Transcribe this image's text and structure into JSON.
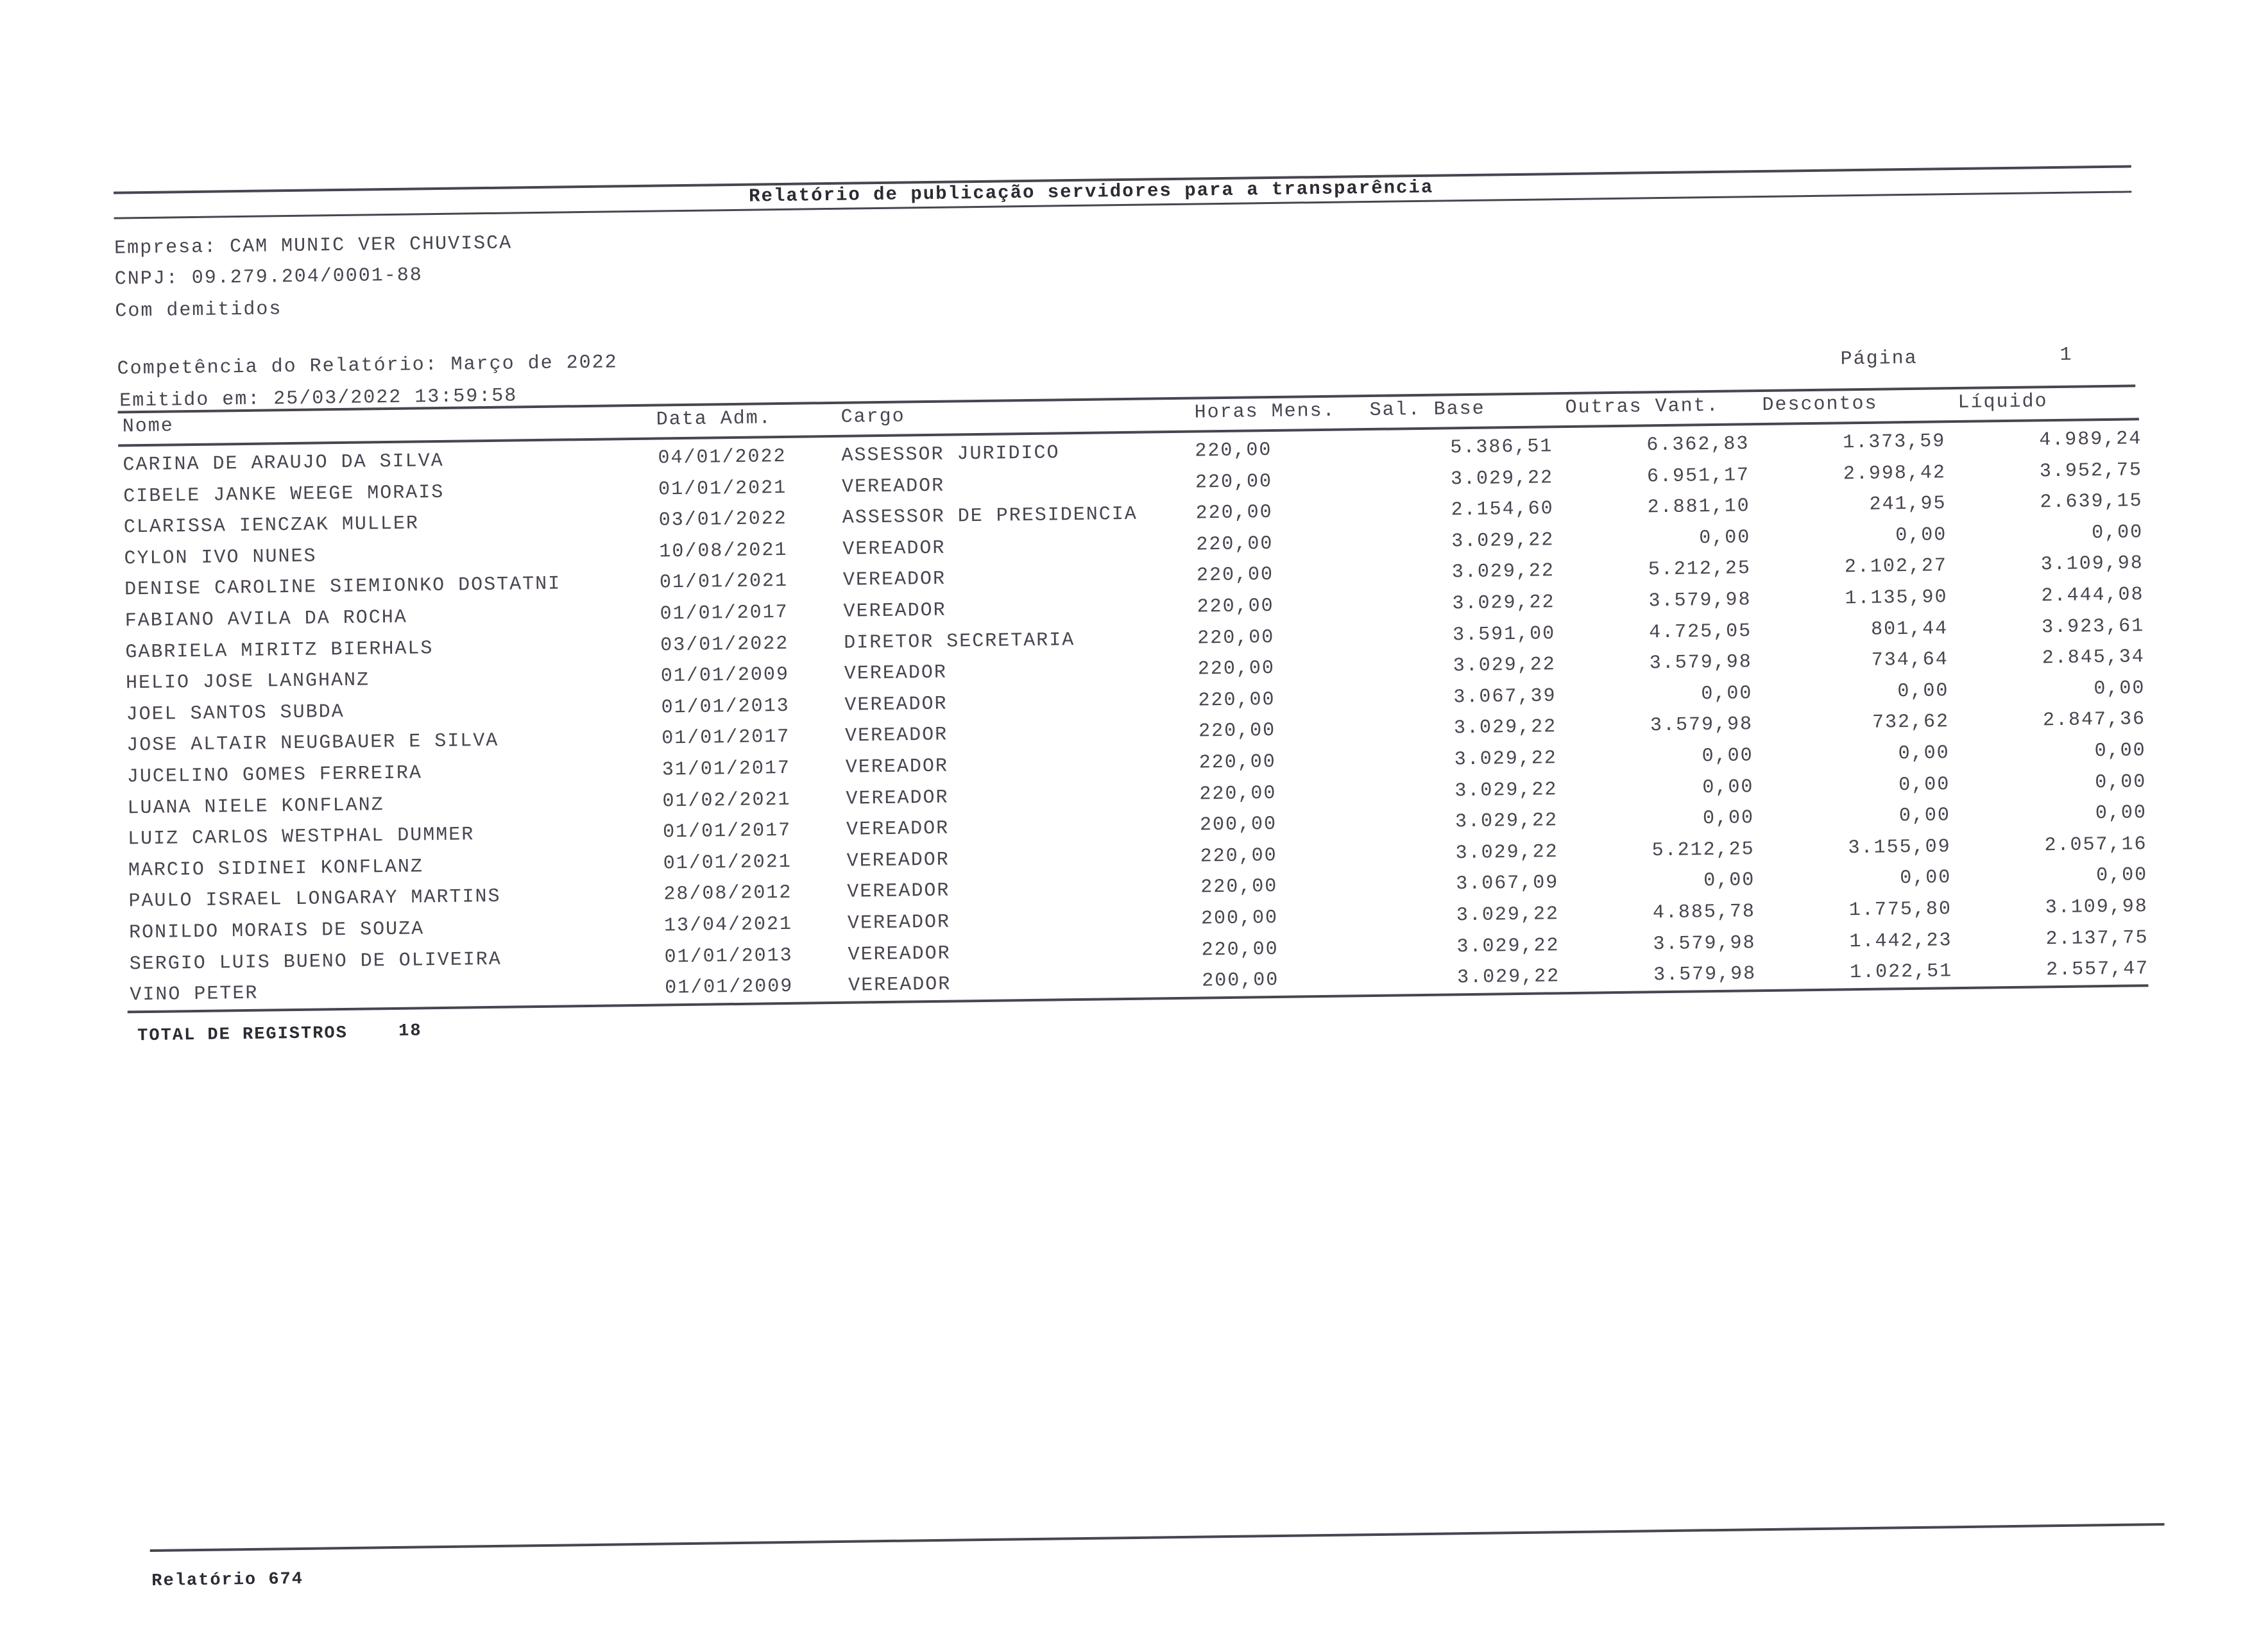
{
  "report_title": "Relatório de publicação servidores para a transparência",
  "company_line": "Empresa: CAM MUNIC VER CHUVISCA",
  "cnpj_line": "CNPJ: 09.279.204/0001-88",
  "filter_line": "Com demitidos",
  "competence_line": "Competência do Relatório: Março de 2022",
  "issued_line": "Emitido em: 25/03/2022 13:59:58",
  "page_label": "Página",
  "page_number": "1",
  "columns": [
    "Nome",
    "Data Adm.",
    "Cargo",
    "Horas Mens.",
    "Sal. Base",
    "Outras Vant.",
    "Descontos",
    "Líquido"
  ],
  "rows": [
    [
      "CARINA DE ARAUJO DA SILVA",
      "04/01/2022",
      "ASSESSOR JURIDICO",
      "220,00",
      "5.386,51",
      "6.362,83",
      "1.373,59",
      "4.989,24"
    ],
    [
      "CIBELE JANKE WEEGE MORAIS",
      "01/01/2021",
      "VEREADOR",
      "220,00",
      "3.029,22",
      "6.951,17",
      "2.998,42",
      "3.952,75"
    ],
    [
      "CLARISSA IENCZAK MULLER",
      "03/01/2022",
      "ASSESSOR DE PRESIDENCIA",
      "220,00",
      "2.154,60",
      "2.881,10",
      "241,95",
      "2.639,15"
    ],
    [
      "CYLON IVO NUNES",
      "10/08/2021",
      "VEREADOR",
      "220,00",
      "3.029,22",
      "0,00",
      "0,00",
      "0,00"
    ],
    [
      "DENISE CAROLINE SIEMIONKO DOSTATNI",
      "01/01/2021",
      "VEREADOR",
      "220,00",
      "3.029,22",
      "5.212,25",
      "2.102,27",
      "3.109,98"
    ],
    [
      "FABIANO AVILA DA ROCHA",
      "01/01/2017",
      "VEREADOR",
      "220,00",
      "3.029,22",
      "3.579,98",
      "1.135,90",
      "2.444,08"
    ],
    [
      "GABRIELA MIRITZ BIERHALS",
      "03/01/2022",
      "DIRETOR SECRETARIA",
      "220,00",
      "3.591,00",
      "4.725,05",
      "801,44",
      "3.923,61"
    ],
    [
      "HELIO JOSE LANGHANZ",
      "01/01/2009",
      "VEREADOR",
      "220,00",
      "3.029,22",
      "3.579,98",
      "734,64",
      "2.845,34"
    ],
    [
      "JOEL SANTOS SUBDA",
      "01/01/2013",
      "VEREADOR",
      "220,00",
      "3.067,39",
      "0,00",
      "0,00",
      "0,00"
    ],
    [
      "JOSE ALTAIR NEUGBAUER E SILVA",
      "01/01/2017",
      "VEREADOR",
      "220,00",
      "3.029,22",
      "3.579,98",
      "732,62",
      "2.847,36"
    ],
    [
      "JUCELINO GOMES FERREIRA",
      "31/01/2017",
      "VEREADOR",
      "220,00",
      "3.029,22",
      "0,00",
      "0,00",
      "0,00"
    ],
    [
      "LUANA NIELE KONFLANZ",
      "01/02/2021",
      "VEREADOR",
      "220,00",
      "3.029,22",
      "0,00",
      "0,00",
      "0,00"
    ],
    [
      "LUIZ CARLOS WESTPHAL DUMMER",
      "01/01/2017",
      "VEREADOR",
      "200,00",
      "3.029,22",
      "0,00",
      "0,00",
      "0,00"
    ],
    [
      "MARCIO SIDINEI KONFLANZ",
      "01/01/2021",
      "VEREADOR",
      "220,00",
      "3.029,22",
      "5.212,25",
      "3.155,09",
      "2.057,16"
    ],
    [
      "PAULO ISRAEL LONGARAY MARTINS",
      "28/08/2012",
      "VEREADOR",
      "220,00",
      "3.067,09",
      "0,00",
      "0,00",
      "0,00"
    ],
    [
      "RONILDO MORAIS DE SOUZA",
      "13/04/2021",
      "VEREADOR",
      "200,00",
      "3.029,22",
      "4.885,78",
      "1.775,80",
      "3.109,98"
    ],
    [
      "SERGIO LUIS BUENO DE OLIVEIRA",
      "01/01/2013",
      "VEREADOR",
      "220,00",
      "3.029,22",
      "3.579,98",
      "1.442,23",
      "2.137,75"
    ],
    [
      "VINO PETER",
      "01/01/2009",
      "VEREADOR",
      "200,00",
      "3.029,22",
      "3.579,98",
      "1.022,51",
      "2.557,47"
    ]
  ],
  "total_label": "TOTAL DE REGISTROS",
  "total_value": "18",
  "footer_label": "Relatório 674"
}
